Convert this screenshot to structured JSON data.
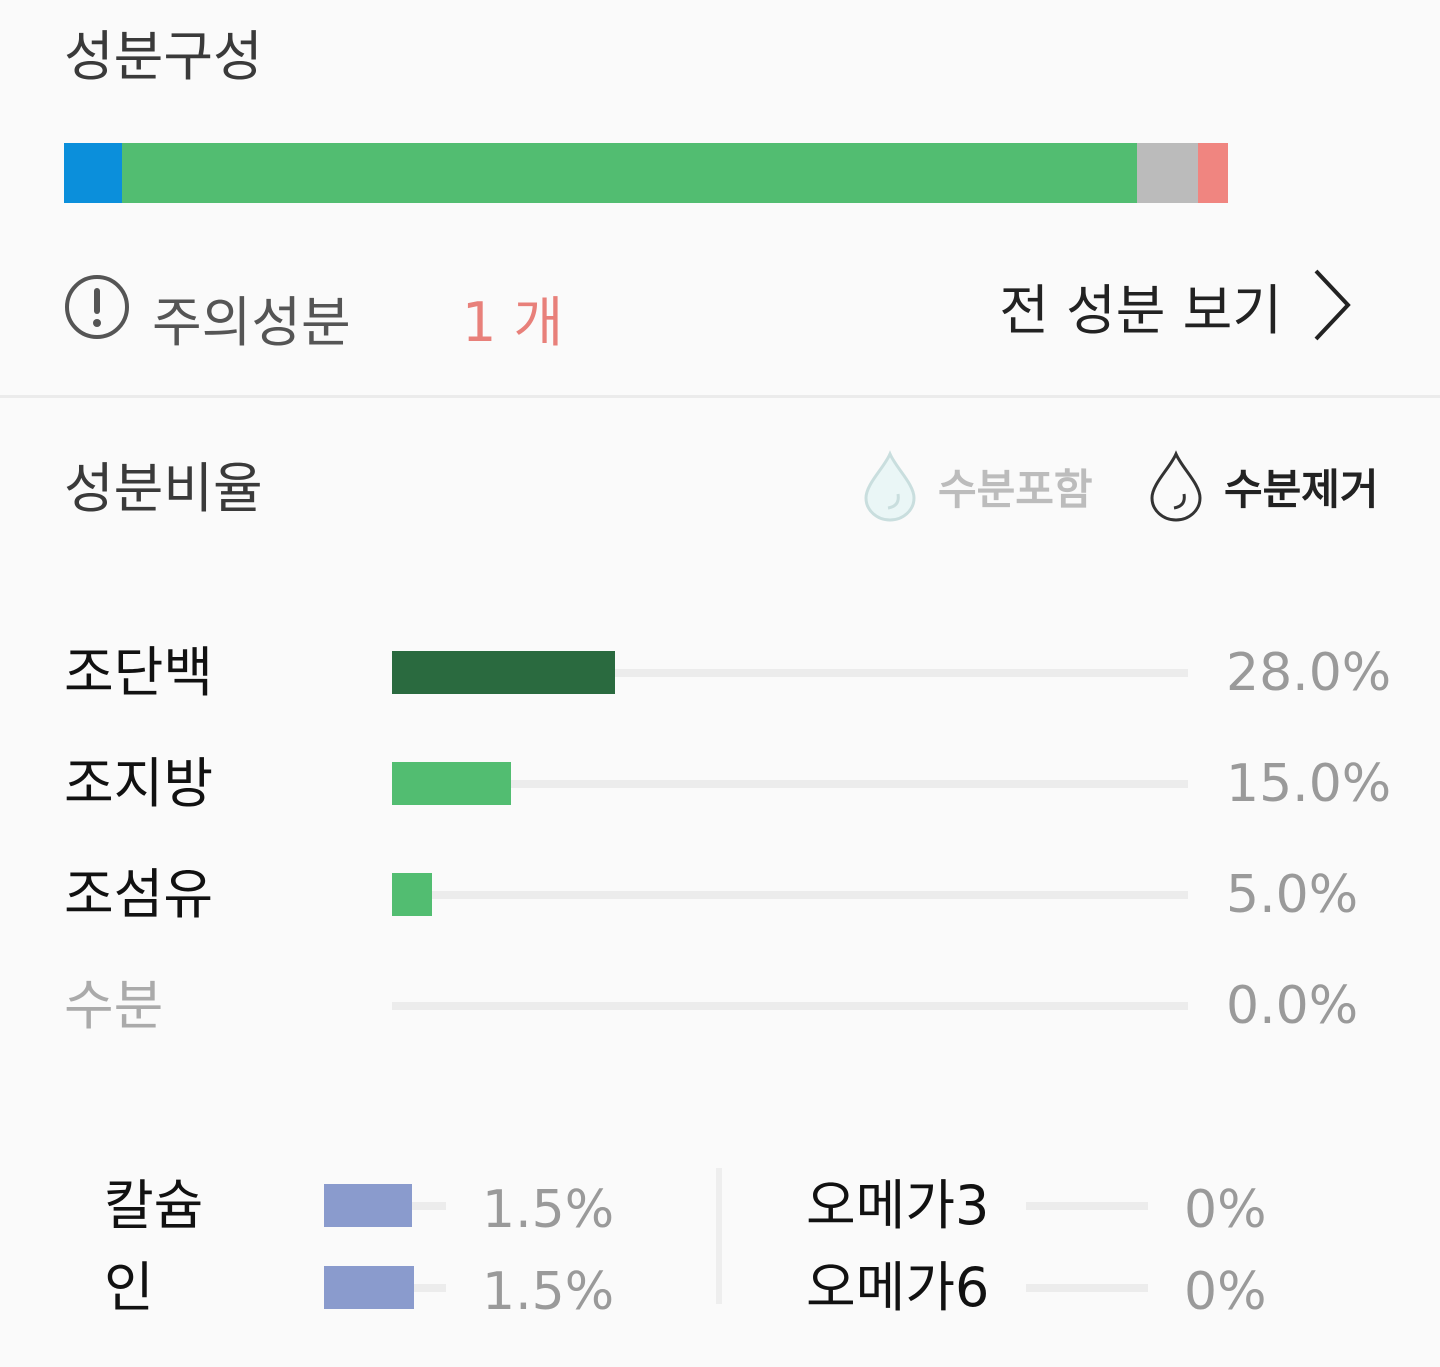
{
  "composition": {
    "title": "성분구성",
    "segments": [
      {
        "color": "#0b8fdb",
        "value": 5.0
      },
      {
        "color": "#52bd71",
        "value": 87.2
      },
      {
        "color": "#bbbbbb",
        "value": 5.2
      },
      {
        "color": "#f08580",
        "value": 2.6
      }
    ],
    "caution_label": "주의성분",
    "caution_count": "1 개",
    "view_all_label": "전 성분 보기"
  },
  "ratio": {
    "title": "성분비율",
    "toggle_include": "수분포함",
    "toggle_exclude": "수분제거",
    "nutrients": [
      {
        "label": "조단백",
        "value": "28.0%",
        "pct": 28.0,
        "color": "#2a6a3f",
        "label_color": "#111111"
      },
      {
        "label": "조지방",
        "value": "15.0%",
        "pct": 15.0,
        "color": "#52bd71",
        "label_color": "#111111"
      },
      {
        "label": "조섬유",
        "value": "5.0%",
        "pct": 5.0,
        "color": "#52bd71",
        "label_color": "#111111"
      },
      {
        "label": "수분",
        "value": "0.0%",
        "pct": 0.0,
        "color": "#52bd71",
        "label_color": "#aaaaaa"
      }
    ],
    "minerals": [
      {
        "label": "칼슘",
        "value": "1.5%",
        "fill": 0.72
      },
      {
        "label": "인",
        "value": "1.5%",
        "fill": 0.74
      }
    ],
    "omegas": [
      {
        "label": "오메가3",
        "value": "0%",
        "fill": 0
      },
      {
        "label": "오메가6",
        "value": "0%",
        "fill": 0
      }
    ]
  }
}
